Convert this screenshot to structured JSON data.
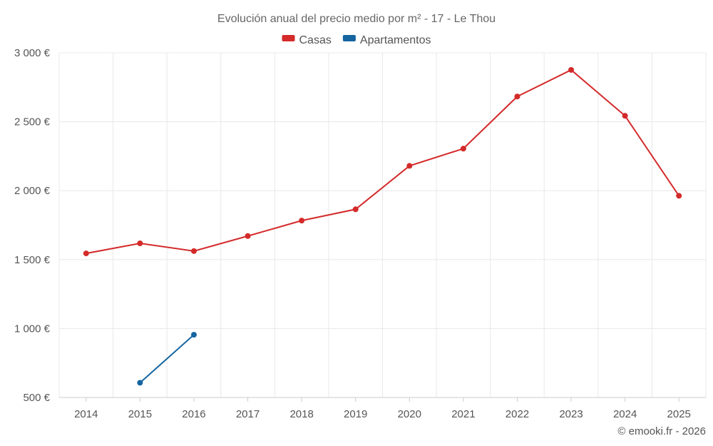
{
  "chart_data": {
    "type": "line",
    "title": "Evolución anual del precio medio por m² - 17 - Le Thou",
    "xlabel": "",
    "ylabel": "",
    "categories": [
      "2014",
      "2015",
      "2016",
      "2017",
      "2018",
      "2019",
      "2020",
      "2021",
      "2022",
      "2023",
      "2024",
      "2025"
    ],
    "ylim": [
      500,
      3000
    ],
    "yticks": [
      500,
      1000,
      1500,
      2000,
      2500,
      3000
    ],
    "ytick_labels": [
      "500 €",
      "1 000 €",
      "1 500 €",
      "2 000 €",
      "2 500 €",
      "3 000 €"
    ],
    "grid": true,
    "legend_position": "top-center",
    "series": [
      {
        "name": "Casas",
        "color": "#d42a2a",
        "values": [
          1545,
          1618,
          1562,
          1671,
          1783,
          1865,
          2180,
          2305,
          2683,
          2876,
          2543,
          1963
        ]
      },
      {
        "name": "Apartamentos",
        "color": "#1565a0",
        "values": [
          null,
          607,
          955,
          null,
          null,
          null,
          null,
          null,
          null,
          null,
          null,
          null
        ]
      }
    ]
  },
  "credit": "© emooki.fr - 2026"
}
